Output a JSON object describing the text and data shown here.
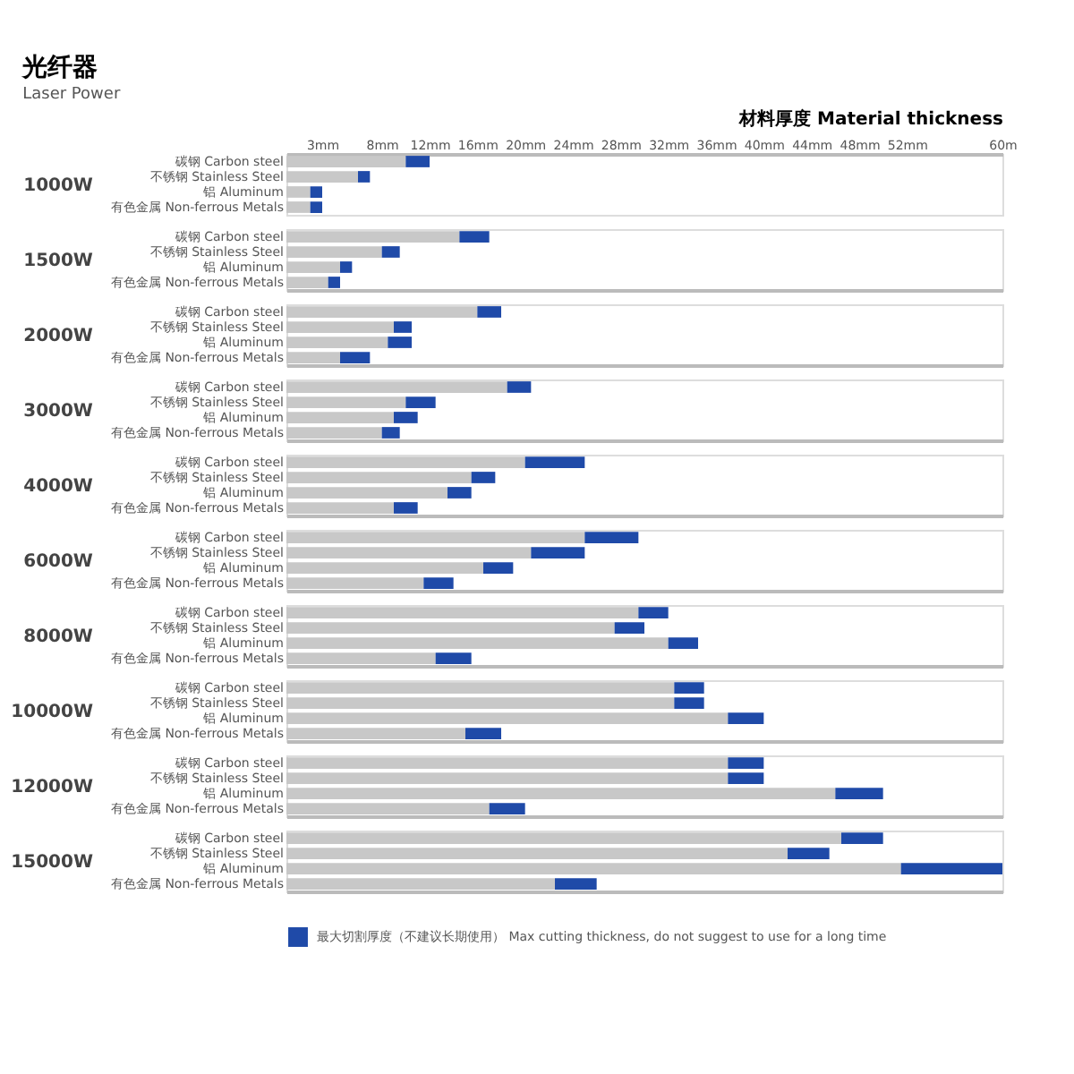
{
  "chart_data": [
    {
      "type": "bar",
      "orientation": "horizontal",
      "stacked": true,
      "title": "光纤器",
      "subtitle": "Laser Power",
      "xlabel": "材料厚度 Material thickness",
      "ylabel": "1000W",
      "categories": [
        "碳钢 Carbon steel",
        "不锈钢 Stainless Steel",
        "铝 Aluminum",
        "有色金属 Non-ferrous Metals"
      ],
      "xlim": [
        0,
        60
      ],
      "xticks": [
        {
          "value": 3,
          "label": "3mm"
        },
        {
          "value": 8,
          "label": "8mm"
        },
        {
          "value": 12,
          "label": "12mm"
        },
        {
          "value": 16,
          "label": "16mm"
        },
        {
          "value": 20,
          "label": "20mm"
        },
        {
          "value": 24,
          "label": "24mm"
        },
        {
          "value": 28,
          "label": "28mm"
        },
        {
          "value": 32,
          "label": "32mm"
        },
        {
          "value": 36,
          "label": "36mm"
        },
        {
          "value": 40,
          "label": "40mm"
        },
        {
          "value": 44,
          "label": "44mm"
        },
        {
          "value": 48,
          "label": "48mm"
        },
        {
          "value": 52,
          "label": "52mm"
        },
        {
          "value": 60,
          "label": "60m"
        }
      ],
      "series": [
        {
          "color": "#c8c8c8",
          "values": [
            10,
            6,
            2,
            2
          ]
        },
        {
          "color": "#1f4aa8",
          "values": [
            2,
            1,
            1,
            1
          ]
        }
      ]
    },
    {
      "type": "bar",
      "orientation": "horizontal",
      "stacked": true,
      "ylabel": "1500W",
      "tick_labels": "y",
      "categories": [
        "碳钢 Carbon steel",
        "不锈钢 Stainless Steel",
        "铝 Aluminum",
        "有色金属 Non-ferrous Metals"
      ],
      "xlim": [
        0,
        60
      ],
      "series": [
        {
          "color": "#c8c8c8",
          "values": [
            14.5,
            8,
            4.5,
            3.5
          ]
        },
        {
          "color": "#1f4aa8",
          "values": [
            2.5,
            1.5,
            1,
            1
          ]
        }
      ]
    },
    {
      "type": "bar",
      "orientation": "horizontal",
      "stacked": true,
      "ylabel": "2000W",
      "tick_labels": "y",
      "categories": [
        "碳钢 Carbon steel",
        "不锈钢 Stainless Steel",
        "铝 Aluminum",
        "有色金属 Non-ferrous Metals"
      ],
      "xlim": [
        0,
        60
      ],
      "series": [
        {
          "color": "#c8c8c8",
          "values": [
            16,
            9,
            8.5,
            4.5
          ]
        },
        {
          "color": "#1f4aa8",
          "values": [
            2,
            1.5,
            2,
            2.5
          ]
        }
      ]
    },
    {
      "type": "bar",
      "orientation": "horizontal",
      "stacked": true,
      "ylabel": "3000W",
      "tick_labels": "y",
      "categories": [
        "碳钢 Carbon steel",
        "不锈钢 Stainless Steel",
        "铝 Aluminum",
        "有色金属 Non-ferrous Metals"
      ],
      "xlim": [
        0,
        60
      ],
      "series": [
        {
          "color": "#c8c8c8",
          "values": [
            18.5,
            10,
            9,
            8
          ]
        },
        {
          "color": "#1f4aa8",
          "values": [
            2,
            2.5,
            2,
            1.5
          ]
        }
      ]
    },
    {
      "type": "bar",
      "orientation": "horizontal",
      "stacked": true,
      "ylabel": "4000W",
      "tick_labels": "y",
      "categories": [
        "碳钢 Carbon steel",
        "不锈钢 Stainless Steel",
        "铝 Aluminum",
        "有色金属 Non-ferrous Metals"
      ],
      "xlim": [
        0,
        60
      ],
      "series": [
        {
          "color": "#c8c8c8",
          "values": [
            20,
            15.5,
            13.5,
            9
          ]
        },
        {
          "color": "#1f4aa8",
          "values": [
            5,
            2,
            2,
            2
          ]
        }
      ]
    },
    {
      "type": "bar",
      "orientation": "horizontal",
      "stacked": true,
      "ylabel": "6000W",
      "tick_labels": "y",
      "categories": [
        "碳钢 Carbon steel",
        "不锈钢 Stainless Steel",
        "铝 Aluminum",
        "有色金属 Non-ferrous Metals"
      ],
      "xlim": [
        0,
        60
      ],
      "series": [
        {
          "color": "#c8c8c8",
          "values": [
            25,
            20.5,
            16.5,
            11.5
          ]
        },
        {
          "color": "#1f4aa8",
          "values": [
            4.5,
            4.5,
            2.5,
            2.5
          ]
        }
      ]
    },
    {
      "type": "bar",
      "orientation": "horizontal",
      "stacked": true,
      "ylabel": "8000W",
      "tick_labels": "y",
      "categories": [
        "碳钢 Carbon steel",
        "不锈钢 Stainless Steel",
        "铝 Aluminum",
        "有色金属 Non-ferrous Metals"
      ],
      "xlim": [
        0,
        60
      ],
      "series": [
        {
          "color": "#c8c8c8",
          "values": [
            29.5,
            27.5,
            32,
            12.5
          ]
        },
        {
          "color": "#1f4aa8",
          "values": [
            2.5,
            2.5,
            2.5,
            3
          ]
        }
      ]
    },
    {
      "type": "bar",
      "orientation": "horizontal",
      "stacked": true,
      "ylabel": "10000W",
      "tick_labels": "y",
      "categories": [
        "碳钢 Carbon steel",
        "不锈钢 Stainless Steel",
        "铝 Aluminum",
        "有色金属 Non-ferrous Metals"
      ],
      "xlim": [
        0,
        60
      ],
      "series": [
        {
          "color": "#c8c8c8",
          "values": [
            32.5,
            32.5,
            37,
            15
          ]
        },
        {
          "color": "#1f4aa8",
          "values": [
            2.5,
            2.5,
            3,
            3
          ]
        }
      ]
    },
    {
      "type": "bar",
      "orientation": "horizontal",
      "stacked": true,
      "ylabel": "12000W",
      "tick_labels": "y",
      "categories": [
        "碳钢 Carbon steel",
        "不锈钢 Stainless Steel",
        "铝 Aluminum",
        "有色金属 Non-ferrous Metals"
      ],
      "xlim": [
        0,
        60
      ],
      "series": [
        {
          "color": "#c8c8c8",
          "values": [
            37,
            37,
            46,
            17
          ]
        },
        {
          "color": "#1f4aa8",
          "values": [
            3,
            3,
            4,
            3
          ]
        }
      ]
    },
    {
      "type": "bar",
      "orientation": "horizontal",
      "stacked": true,
      "ylabel": "15000W",
      "tick_labels": "y",
      "legend": "bottom",
      "categories": [
        "碳钢 Carbon steel",
        "不锈钢 Stainless Steel",
        "铝 Aluminum",
        "有色金属 Non-ferrous Metals"
      ],
      "xlim": [
        0,
        60
      ],
      "series": [
        {
          "color": "#c8c8c8",
          "values": [
            46.5,
            42,
            51.5,
            22.5
          ]
        },
        {
          "name": "最大切割厚度（不建议长期使用） Max cutting thickness, do not suggest to use for a long time",
          "color": "#1f4aa8",
          "values": [
            3.5,
            3.5,
            8.5,
            3.5
          ]
        }
      ]
    }
  ]
}
